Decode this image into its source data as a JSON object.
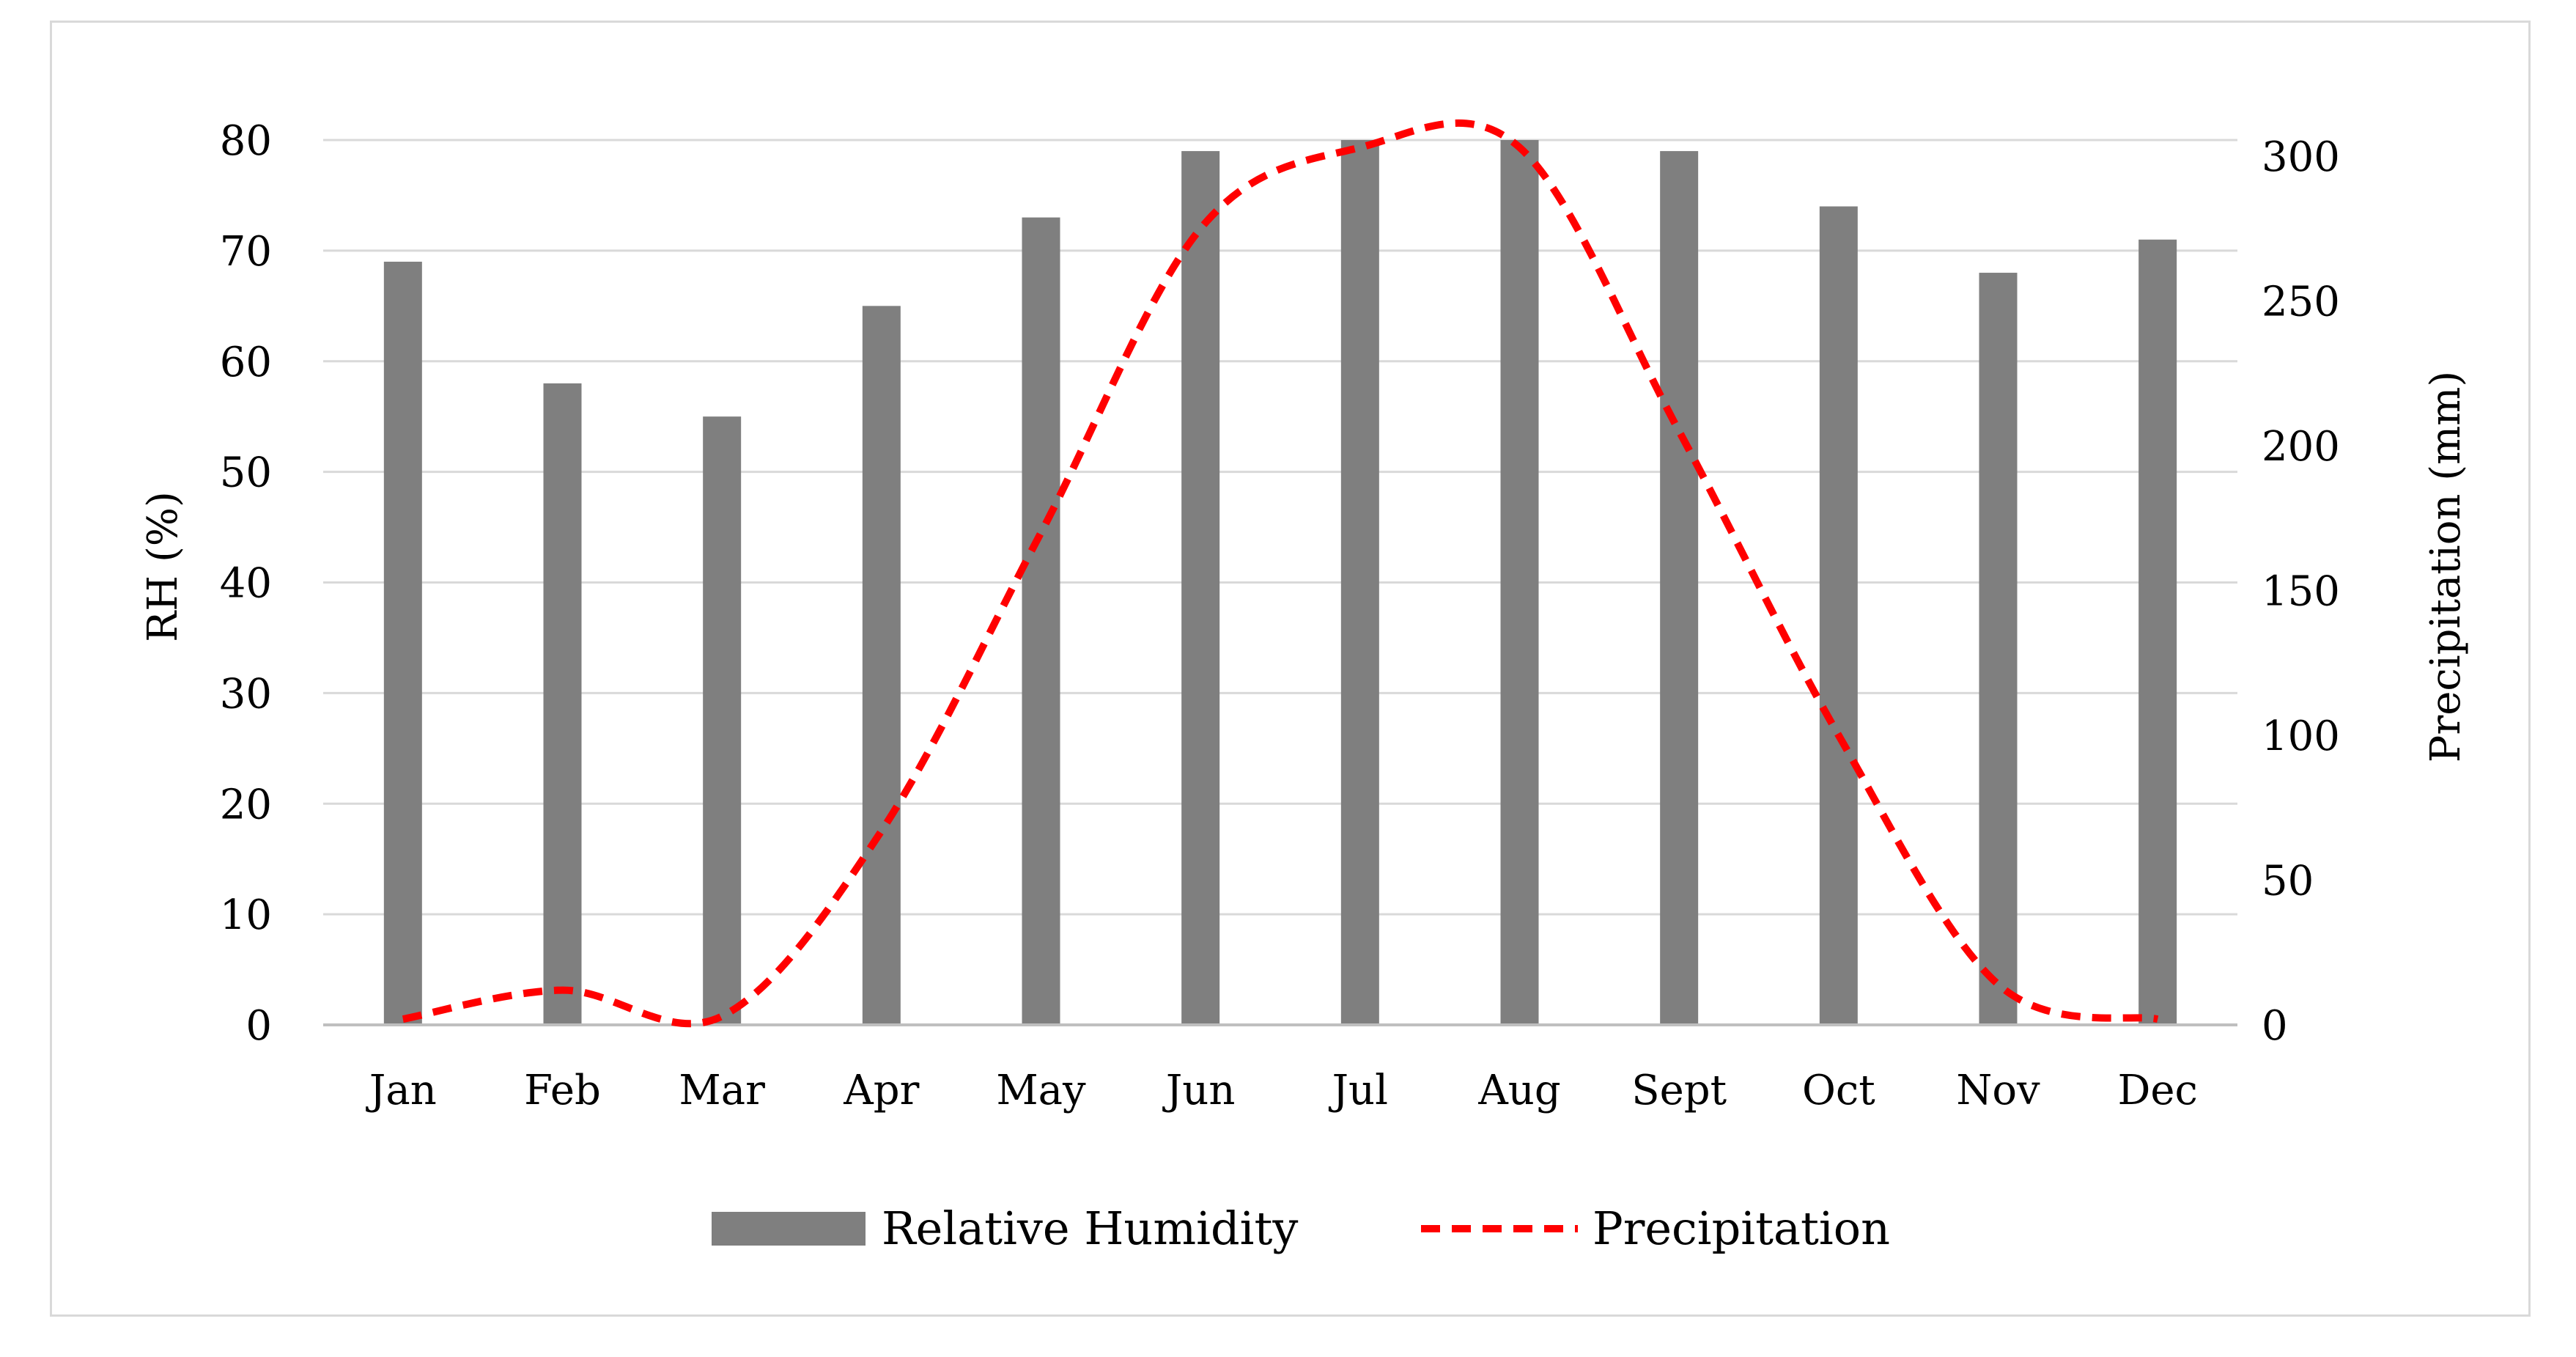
{
  "chart_data": {
    "type": "bar+line",
    "categories": [
      "Jan",
      "Feb",
      "Mar",
      "Apr",
      "May",
      "Jun",
      "Jul",
      "Aug",
      "Sept",
      "Oct",
      "Nov",
      "Dec"
    ],
    "series": [
      {
        "name": "Relative Humidity",
        "type": "bar",
        "axis": "left",
        "values": [
          69,
          58,
          55,
          65,
          73,
          79,
          80,
          80,
          79,
          74,
          68,
          71
        ]
      },
      {
        "name": "Precipitation",
        "type": "line",
        "style": "dashed",
        "axis": "right",
        "values": [
          2,
          12,
          3,
          67,
          170,
          275,
          303,
          303,
          205,
          100,
          14,
          2
        ]
      }
    ],
    "ylabel": "RH (%)",
    "ylabel_right": "Precipitation (mm)",
    "ylim": [
      0,
      80
    ],
    "ylim_right": [
      0,
      300
    ],
    "yticks": [
      "0",
      "10",
      "20",
      "30",
      "40",
      "50",
      "60",
      "70",
      "80"
    ],
    "yticks_right": [
      "0",
      "50",
      "100",
      "150",
      "200",
      "250",
      "300"
    ],
    "grid": true,
    "legend_position": "bottom-center"
  },
  "colors": {
    "bar": "#7f7f7f",
    "line": "#ff0000",
    "grid": "#d9d9d9",
    "axis": "#bfbfbf",
    "frame": "#d9d9d9"
  }
}
